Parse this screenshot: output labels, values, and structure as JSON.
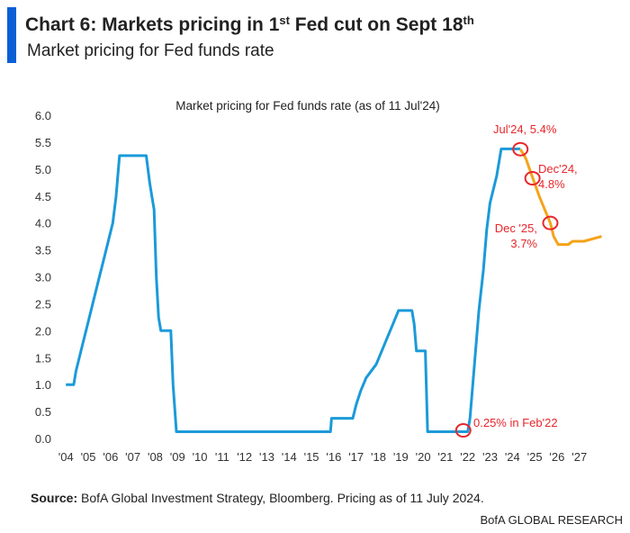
{
  "chart_data": {
    "type": "line",
    "title_parts": [
      "Chart 6: Markets pricing in 1",
      "st",
      " Fed cut on Sept 18",
      "th"
    ],
    "subtitle": "Market pricing for Fed funds rate",
    "plot_title": "Market pricing for Fed funds rate (as of 11 Jul'24)",
    "source_label": "Source:",
    "source_text": " BofA Global Investment Strategy, Bloomberg. Pricing as of 11 July 2024.",
    "footer": "BofA GLOBAL RESEARCH",
    "xlim": [
      2003.95,
      2028.1
    ],
    "ylim": [
      0,
      6
    ],
    "yticks": [
      {
        "value": 0,
        "label": "0.0"
      },
      {
        "value": 0.5,
        "label": "0.5"
      },
      {
        "value": 1,
        "label": "1.0"
      },
      {
        "value": 1.5,
        "label": "1.5"
      },
      {
        "value": 2,
        "label": "2.0"
      },
      {
        "value": 2.5,
        "label": "2.5"
      },
      {
        "value": 3,
        "label": "3.0"
      },
      {
        "value": 3.5,
        "label": "3.5"
      },
      {
        "value": 4,
        "label": "4.0"
      },
      {
        "value": 4.5,
        "label": "4.5"
      },
      {
        "value": 5,
        "label": "5.0"
      },
      {
        "value": 5.5,
        "label": "5.5"
      },
      {
        "value": 6,
        "label": "6.0"
      }
    ],
    "xticks": [
      {
        "value": 2004,
        "label": "'04"
      },
      {
        "value": 2005,
        "label": "'05"
      },
      {
        "value": 2006,
        "label": "'06"
      },
      {
        "value": 2007,
        "label": "'07"
      },
      {
        "value": 2008,
        "label": "'08"
      },
      {
        "value": 2009,
        "label": "'09"
      },
      {
        "value": 2010,
        "label": "'10"
      },
      {
        "value": 2011,
        "label": "'11"
      },
      {
        "value": 2012,
        "label": "'12"
      },
      {
        "value": 2013,
        "label": "'13"
      },
      {
        "value": 2014,
        "label": "'14"
      },
      {
        "value": 2015,
        "label": "'15"
      },
      {
        "value": 2016,
        "label": "'16"
      },
      {
        "value": 2017,
        "label": "'17"
      },
      {
        "value": 2018,
        "label": "'18"
      },
      {
        "value": 2019,
        "label": "'19"
      },
      {
        "value": 2020,
        "label": "'20"
      },
      {
        "value": 2021,
        "label": "'21"
      },
      {
        "value": 2022,
        "label": "'22"
      },
      {
        "value": 2023,
        "label": "'23"
      },
      {
        "value": 2024,
        "label": "'24"
      },
      {
        "value": 2025,
        "label": "'25"
      },
      {
        "value": 2026,
        "label": "'26"
      },
      {
        "value": 2027,
        "label": "'27"
      }
    ],
    "series": [
      {
        "color": "#1b9ad9",
        "x": [
          2004.0,
          2004.35,
          2004.45,
          2004.6,
          2004.75,
          2004.9,
          2005.05,
          2005.2,
          2005.35,
          2005.5,
          2005.65,
          2005.8,
          2005.95,
          2006.1,
          2006.25,
          2006.4,
          2007.6,
          2007.75,
          2007.85,
          2007.95,
          2008.05,
          2008.15,
          2008.25,
          2008.7,
          2008.8,
          2008.95,
          2015.85,
          2015.9,
          2016.85,
          2017.0,
          2017.2,
          2017.45,
          2017.9,
          2018.15,
          2018.4,
          2018.65,
          2018.9,
          2019.5,
          2019.6,
          2019.7,
          2020.1,
          2020.2,
          2022.0,
          2022.1,
          2022.2,
          2022.35,
          2022.5,
          2022.7,
          2022.85,
          2023.0,
          2023.15,
          2023.3,
          2023.5,
          2024.36
        ],
        "values": [
          1.0,
          1.0,
          1.25,
          1.5,
          1.75,
          2.0,
          2.25,
          2.5,
          2.75,
          3.0,
          3.25,
          3.5,
          3.75,
          4.0,
          4.5,
          5.25,
          5.25,
          4.75,
          4.5,
          4.25,
          3.0,
          2.25,
          2.0,
          2.0,
          1.0,
          0.125,
          0.125,
          0.375,
          0.375,
          0.625,
          0.875,
          1.125,
          1.375,
          1.625,
          1.875,
          2.125,
          2.375,
          2.375,
          2.125,
          1.625,
          1.625,
          0.125,
          0.125,
          0.375,
          0.875,
          1.625,
          2.375,
          3.125,
          3.875,
          4.375,
          4.625,
          4.875,
          5.375,
          5.375
        ]
      },
      {
        "color": "#f5a31a",
        "x": [
          2024.36,
          2024.6,
          2024.9,
          2025.2,
          2025.5,
          2025.7,
          2025.85,
          2026.05,
          2026.5,
          2026.7,
          2027.2,
          2028.0
        ],
        "values": [
          5.37,
          5.2,
          4.85,
          4.5,
          4.2,
          4.0,
          3.75,
          3.6,
          3.6,
          3.66,
          3.66,
          3.75
        ]
      }
    ],
    "annotations": [
      {
        "text": [
          "Jul'24, 5.4%"
        ],
        "x": 2024.36,
        "y": 5.37
      },
      {
        "text": [
          "Dec'24,",
          "4.8%"
        ],
        "x": 2024.9,
        "y": 4.83
      },
      {
        "text": [
          "Dec '25,",
          "3.7%"
        ],
        "x": 2025.7,
        "y": 4.0
      },
      {
        "text": [
          "0.25% in Feb'22"
        ],
        "x": 2021.8,
        "y": 0.15
      }
    ]
  }
}
